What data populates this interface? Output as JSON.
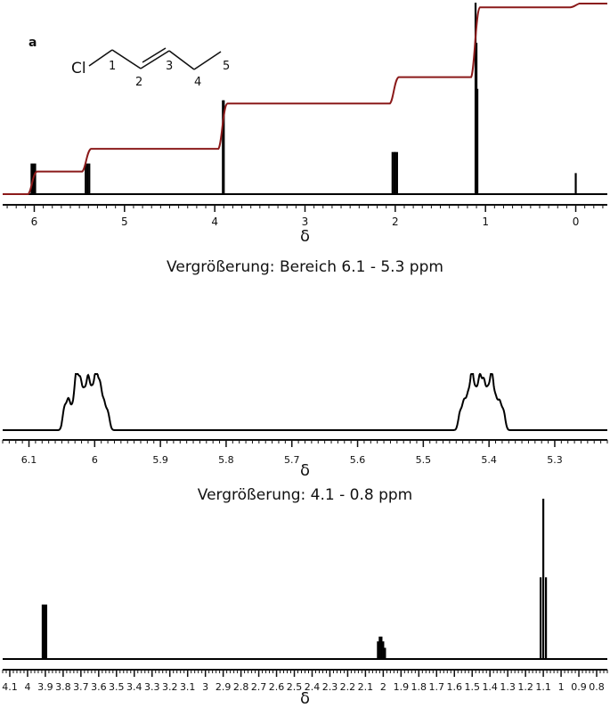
{
  "figure_label": "a",
  "molecule": {
    "atom_label": "Cl",
    "numbers": [
      "1",
      "2",
      "3",
      "4",
      "5"
    ]
  },
  "captions": {
    "zoom1": "Vergrößerung: Bereich 6.1 - 5.3 ppm",
    "zoom2": "Vergrößerung: 4.1 - 0.8 ppm"
  },
  "colors": {
    "spectrum": "#000000",
    "integral": "#8b1a1a"
  },
  "chart_data": [
    {
      "type": "line",
      "title": "",
      "xlabel": "δ",
      "ylabel": "",
      "xlim": [
        6.35,
        -0.35
      ],
      "x_reversed": true,
      "ticks": [
        6,
        5,
        4,
        3,
        2,
        1,
        0
      ],
      "tick_labels": [
        "6",
        "5",
        "4",
        "3",
        "2",
        "1",
        "0"
      ],
      "series": [
        {
          "kind": "spectrum",
          "peaks": [
            {
              "x": 6.03,
              "h": 0.16
            },
            {
              "x": 6.01,
              "h": 0.16
            },
            {
              "x": 5.99,
              "h": 0.16
            },
            {
              "x": 5.43,
              "h": 0.16
            },
            {
              "x": 5.41,
              "h": 0.16
            },
            {
              "x": 5.39,
              "h": 0.16
            },
            {
              "x": 3.91,
              "h": 0.49
            },
            {
              "x": 3.9,
              "h": 0.49
            },
            {
              "x": 2.03,
              "h": 0.22
            },
            {
              "x": 2.01,
              "h": 0.22
            },
            {
              "x": 2.0,
              "h": 0.22
            },
            {
              "x": 1.98,
              "h": 0.22
            },
            {
              "x": 1.11,
              "h": 1.0
            },
            {
              "x": 1.1,
              "h": 0.79
            },
            {
              "x": 1.09,
              "h": 0.55
            },
            {
              "x": 0.0,
              "h": 0.11
            }
          ]
        },
        {
          "kind": "integral",
          "steps": [
            {
              "x": 6.01,
              "rise": 0.12
            },
            {
              "x": 5.41,
              "rise": 0.12
            },
            {
              "x": 3.9,
              "rise": 0.24
            },
            {
              "x": 2.0,
              "rise": 0.14
            },
            {
              "x": 1.1,
              "rise": 0.37
            },
            {
              "x": 0.0,
              "rise": 0.02
            }
          ]
        }
      ]
    },
    {
      "type": "line",
      "title": "",
      "xlabel": "δ",
      "ylabel": "",
      "xlim": [
        6.14,
        5.22
      ],
      "x_reversed": true,
      "ticks": [
        6.1,
        6.0,
        5.9,
        5.8,
        5.7,
        5.6,
        5.5,
        5.4,
        5.3
      ],
      "tick_labels": [
        "6.1",
        "6",
        "5.9",
        "5.8",
        "5.7",
        "5.6",
        "5.5",
        "5.4",
        "5.3"
      ],
      "series": [
        {
          "kind": "multiplet",
          "peaks": [
            {
              "x": 6.046,
              "h": 0.38
            },
            {
              "x": 6.04,
              "h": 0.5
            },
            {
              "x": 6.034,
              "h": 0.34
            },
            {
              "x": 6.028,
              "h": 0.95
            },
            {
              "x": 6.022,
              "h": 0.8
            },
            {
              "x": 6.016,
              "h": 0.6
            },
            {
              "x": 6.01,
              "h": 0.86
            },
            {
              "x": 6.004,
              "h": 0.62
            },
            {
              "x": 5.998,
              "h": 0.96
            },
            {
              "x": 5.992,
              "h": 0.74
            },
            {
              "x": 5.986,
              "h": 0.45
            },
            {
              "x": 5.98,
              "h": 0.3
            },
            {
              "x": 5.444,
              "h": 0.3
            },
            {
              "x": 5.438,
              "h": 0.47
            },
            {
              "x": 5.432,
              "h": 0.55
            },
            {
              "x": 5.426,
              "h": 0.96
            },
            {
              "x": 5.42,
              "h": 0.6
            },
            {
              "x": 5.414,
              "h": 0.86
            },
            {
              "x": 5.408,
              "h": 0.78
            },
            {
              "x": 5.402,
              "h": 0.62
            },
            {
              "x": 5.396,
              "h": 0.94
            },
            {
              "x": 5.39,
              "h": 0.5
            },
            {
              "x": 5.384,
              "h": 0.46
            },
            {
              "x": 5.378,
              "h": 0.32
            }
          ]
        }
      ]
    },
    {
      "type": "line",
      "title": "",
      "xlabel": "δ",
      "ylabel": "",
      "xlim": [
        4.14,
        0.74
      ],
      "x_reversed": true,
      "ticks": [
        4.1,
        4.0,
        3.9,
        3.8,
        3.7,
        3.6,
        3.5,
        3.4,
        3.3,
        3.2,
        3.1,
        3.0,
        2.9,
        2.8,
        2.7,
        2.6,
        2.5,
        2.4,
        2.3,
        2.2,
        2.1,
        2.0,
        1.9,
        1.8,
        1.7,
        1.6,
        1.5,
        1.4,
        1.3,
        1.2,
        1.1,
        1.0,
        0.9,
        0.8
      ],
      "tick_labels": [
        "4.1",
        "4",
        "3.9",
        "3.8",
        "3.7",
        "3.6",
        "3.5",
        "3.4",
        "3.3",
        "3.2",
        "3.1",
        "3",
        "2.9",
        "2.8",
        "2.7",
        "2.6",
        "2.5",
        "2.4",
        "2.3",
        "2.2",
        "2.1",
        "2",
        "1.9",
        "1.8",
        "1.7",
        "1.6",
        "1.5",
        "1.4",
        "1.3",
        "1.2",
        "1.1",
        "1",
        "0.9",
        "0.8"
      ],
      "series": [
        {
          "kind": "spectrum",
          "peaks": [
            {
              "x": 3.915,
              "h": 0.34
            },
            {
              "x": 3.905,
              "h": 0.34
            },
            {
              "x": 3.895,
              "h": 0.34
            },
            {
              "x": 2.03,
              "h": 0.11
            },
            {
              "x": 2.02,
              "h": 0.14
            },
            {
              "x": 2.01,
              "h": 0.14
            },
            {
              "x": 2.0,
              "h": 0.11
            },
            {
              "x": 1.99,
              "h": 0.07
            },
            {
              "x": 1.115,
              "h": 0.51
            },
            {
              "x": 1.1,
              "h": 1.0
            },
            {
              "x": 1.085,
              "h": 0.51
            }
          ]
        }
      ]
    }
  ]
}
